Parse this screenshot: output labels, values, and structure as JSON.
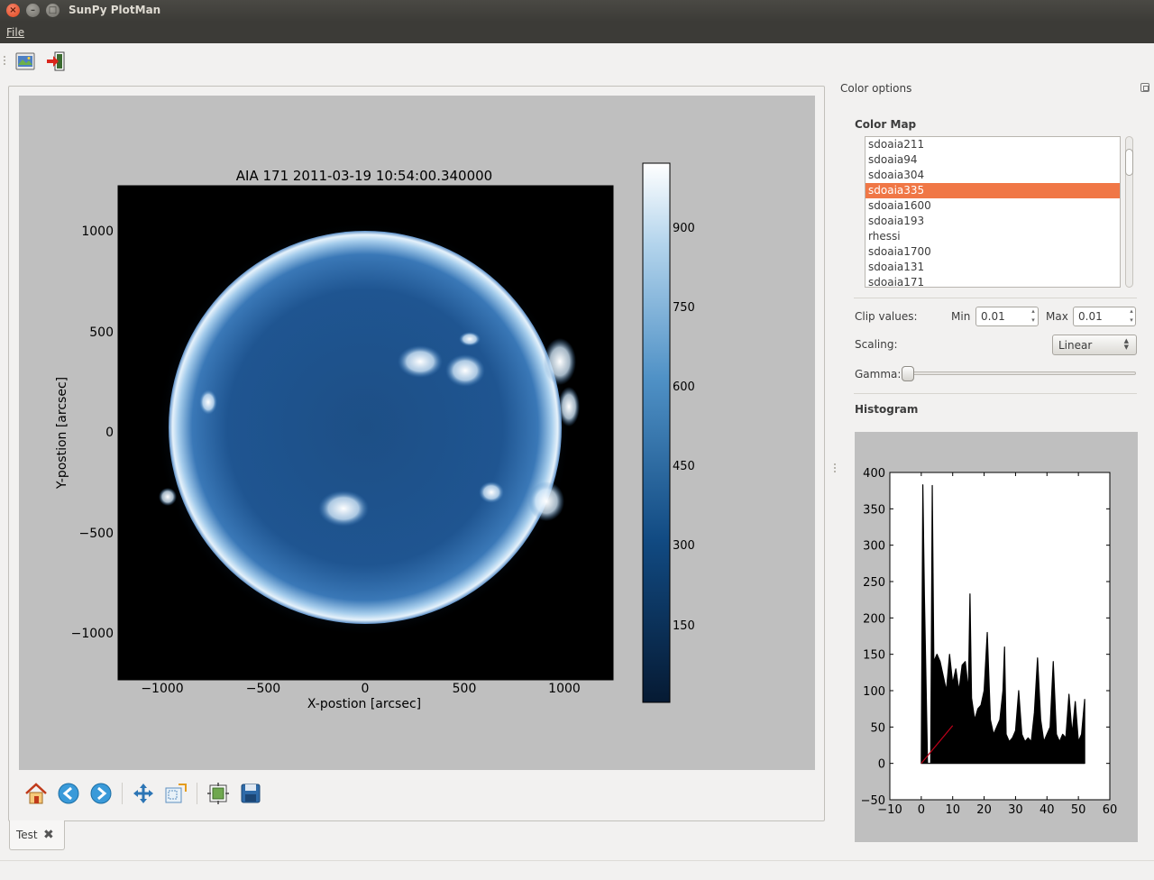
{
  "window": {
    "title": "SunPy PlotMan"
  },
  "menu": {
    "file": "File"
  },
  "toolbar": {
    "open_icon": "open-map-icon",
    "exit_icon": "exit-icon"
  },
  "plot": {
    "title": "AIA 171 2011-03-19 10:54:00.340000",
    "xlabel": "X-postion [arcsec]",
    "ylabel": "Y-postion [arcsec]",
    "xticks": [
      "−1000",
      "−500",
      "0",
      "500",
      "1000"
    ],
    "yticks": [
      "1000",
      "500",
      "0",
      "−500",
      "−1000"
    ],
    "colorbar_ticks": [
      "900",
      "750",
      "600",
      "450",
      "300",
      "150"
    ]
  },
  "nav_toolbar": {
    "home": "home-icon",
    "back": "back-arrow-icon",
    "forward": "forward-arrow-icon",
    "pan": "pan-icon",
    "zoom": "zoom-icon",
    "subplots": "subplots-icon",
    "save": "save-icon"
  },
  "tabs": [
    {
      "label": "Test"
    }
  ],
  "color_options": {
    "title": "Color options",
    "color_map_title": "Color Map",
    "colormaps": [
      "sdoaia211",
      "sdoaia94",
      "sdoaia304",
      "sdoaia335",
      "sdoaia1600",
      "sdoaia193",
      "rhessi",
      "sdoaia1700",
      "sdoaia131",
      "sdoaia171"
    ],
    "selected_colormap": "sdoaia335",
    "clip_label": "Clip values:",
    "min_label": "Min",
    "min_value": "0.01",
    "max_label": "Max",
    "max_value": "0.01",
    "scaling_label": "Scaling:",
    "scaling_value": "Linear",
    "gamma_label": "Gamma:",
    "gamma_value": 0,
    "histogram_title": "Histogram"
  },
  "chart_data": {
    "type": "line",
    "title": "",
    "xlabel": "",
    "ylabel": "",
    "xlim": [
      -10,
      60
    ],
    "ylim": [
      -50,
      400
    ],
    "xticks": [
      -10,
      0,
      10,
      20,
      30,
      40,
      50,
      60
    ],
    "yticks": [
      -50,
      0,
      50,
      100,
      150,
      200,
      250,
      300,
      350,
      400
    ],
    "series": [
      {
        "x": [
          0,
          0.5,
          1,
          2,
          3,
          3.5,
          4,
          5,
          6,
          7,
          8,
          8.5,
          9,
          10,
          11,
          12,
          13,
          14,
          15,
          15.5,
          16,
          17,
          18,
          19,
          20,
          21,
          22,
          23,
          24,
          25,
          26,
          26.5,
          27,
          28,
          29,
          30,
          31,
          32,
          33,
          34,
          35,
          36,
          37,
          38,
          39,
          40,
          41,
          42,
          43,
          44,
          45,
          46,
          47,
          48,
          49,
          50,
          51,
          52
        ],
        "y": [
          0,
          383,
          230,
          0,
          0,
          382,
          140,
          150,
          140,
          120,
          100,
          125,
          150,
          110,
          130,
          100,
          135,
          140,
          100,
          233,
          90,
          60,
          75,
          80,
          100,
          180,
          60,
          40,
          50,
          60,
          100,
          160,
          40,
          30,
          35,
          45,
          100,
          40,
          30,
          35,
          30,
          70,
          145,
          60,
          30,
          40,
          50,
          140,
          40,
          30,
          40,
          35,
          95,
          40,
          85,
          30,
          40,
          88
        ]
      },
      {
        "x": [
          0,
          10
        ],
        "y": [
          0,
          52
        ]
      }
    ]
  }
}
